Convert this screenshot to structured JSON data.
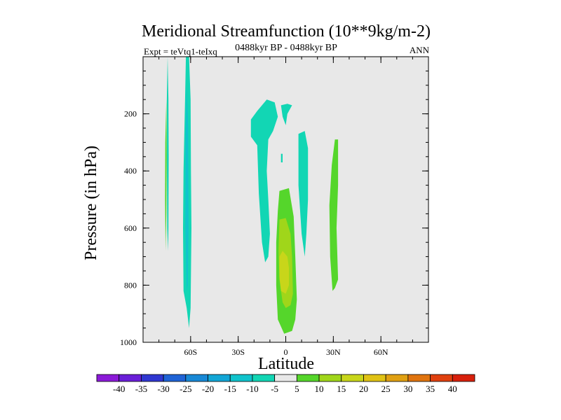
{
  "chart_data": {
    "type": "contour",
    "title": "Meridional Streamfunction (10**9kg/m-2)",
    "subtitle": "0488kyr BP - 0488kyr BP",
    "left_label": "Expt = teVtq1-teIxq",
    "right_label": "ANN",
    "xlabel": "Latitude",
    "ylabel": "Pressure (in hPa)",
    "xlim": [
      -90,
      90
    ],
    "ylim": [
      1000,
      0
    ],
    "x_ticks": [
      -60,
      -30,
      0,
      30,
      60
    ],
    "x_tick_labels": [
      "60S",
      "30S",
      "0",
      "30N",
      "60N"
    ],
    "y_ticks": [
      200,
      400,
      600,
      800,
      1000
    ],
    "y_tick_labels": [
      "200",
      "400",
      "600",
      "800",
      "1000"
    ],
    "colorbar": {
      "levels": [
        -40,
        -35,
        -30,
        -25,
        -20,
        -15,
        -10,
        -5,
        5,
        10,
        15,
        20,
        25,
        30,
        35,
        40
      ],
      "labels": [
        "-40",
        "-35",
        "-30",
        "-25",
        "-20",
        "-15",
        "-10",
        "-5",
        "5",
        "10",
        "15",
        "20",
        "25",
        "30",
        "35",
        "40"
      ],
      "colors": [
        "#8b1ad8",
        "#6a1fd8",
        "#2f37d1",
        "#1f63d6",
        "#1888d6",
        "#12a6d6",
        "#10c3cc",
        "#12d6b4",
        "#e8e8e8",
        "#55d62b",
        "#a0d61a",
        "#c8d61a",
        "#e0c214",
        "#e0a012",
        "#e0740f",
        "#e0400f",
        "#d8200c"
      ]
    },
    "background_color": "#e8e8e8",
    "regions": [
      {
        "name": "neg-5-band-75S",
        "level": -5,
        "color": "#12d6b4",
        "points": [
          [
            -74.5,
            0
          ],
          [
            -74,
            150
          ],
          [
            -73.8,
            350
          ],
          [
            -74,
            600
          ],
          [
            -74.2,
            680
          ],
          [
            -74.8,
            600
          ],
          [
            -75,
            350
          ],
          [
            -75,
            150
          ]
        ]
      },
      {
        "name": "pos-5-band-75S",
        "level": 5,
        "color": "#55d62b",
        "points": [
          [
            -75.3,
            150
          ],
          [
            -75.1,
            350
          ],
          [
            -75.3,
            550
          ],
          [
            -75.8,
            680
          ],
          [
            -76.1,
            500
          ],
          [
            -76,
            300
          ]
        ]
      },
      {
        "name": "neg-5-band-63S",
        "level": -5,
        "color": "#12d6b4",
        "points": [
          [
            -63,
            0
          ],
          [
            -61,
            0
          ],
          [
            -60,
            150
          ],
          [
            -59.8,
            400
          ],
          [
            -59.5,
            600
          ],
          [
            -60,
            880
          ],
          [
            -61,
            950
          ],
          [
            -62.5,
            880
          ],
          [
            -64.5,
            820
          ],
          [
            -64.8,
            600
          ],
          [
            -64.5,
            400
          ],
          [
            -63.5,
            150
          ]
        ]
      },
      {
        "name": "neg-10-core-63S",
        "level": -10,
        "color": "#10c3cc",
        "points": [
          [
            -62.5,
            100
          ],
          [
            -61.5,
            250
          ],
          [
            -61.3,
            600
          ],
          [
            -61.8,
            800
          ],
          [
            -62.5,
            820
          ],
          [
            -63.3,
            600
          ],
          [
            -63.2,
            300
          ]
        ]
      },
      {
        "name": "neg-5-cell-15S",
        "level": -5,
        "color": "#12d6b4",
        "points": [
          [
            -22,
            220
          ],
          [
            -18,
            190
          ],
          [
            -12,
            150
          ],
          [
            -7,
            160
          ],
          [
            -5,
            210
          ],
          [
            -8,
            260
          ],
          [
            -11,
            290
          ],
          [
            -12,
            400
          ],
          [
            -11,
            500
          ],
          [
            -10,
            620
          ],
          [
            -11,
            700
          ],
          [
            -13,
            720
          ],
          [
            -15,
            650
          ],
          [
            -17,
            480
          ],
          [
            -18,
            310
          ],
          [
            -22,
            280
          ]
        ]
      },
      {
        "name": "neg-5-cell-near-eq",
        "level": -5,
        "color": "#12d6b4",
        "points": [
          [
            -3,
            170
          ],
          [
            1,
            165
          ],
          [
            4,
            170
          ],
          [
            1,
            200
          ],
          [
            0,
            240
          ],
          [
            -2,
            210
          ]
        ]
      },
      {
        "name": "neg-5-speck-eq",
        "level": -5,
        "color": "#12d6b4",
        "points": [
          [
            -3,
            340
          ],
          [
            -2,
            340
          ],
          [
            -2,
            370
          ],
          [
            -3,
            370
          ]
        ]
      },
      {
        "name": "neg-5-cell-12N",
        "level": -5,
        "color": "#12d6b4",
        "points": [
          [
            8,
            270
          ],
          [
            12,
            260
          ],
          [
            14,
            320
          ],
          [
            14,
            500
          ],
          [
            13,
            620
          ],
          [
            12,
            700
          ],
          [
            10,
            620
          ],
          [
            8,
            450
          ],
          [
            8,
            330
          ]
        ]
      },
      {
        "name": "pos-5-cell-eq",
        "level": 5,
        "color": "#55d62b",
        "points": [
          [
            -4,
            470
          ],
          [
            2,
            460
          ],
          [
            5,
            560
          ],
          [
            6,
            700
          ],
          [
            7,
            850
          ],
          [
            6,
            920
          ],
          [
            4,
            960
          ],
          [
            -1,
            970
          ],
          [
            -5,
            920
          ],
          [
            -6,
            800
          ],
          [
            -6,
            650
          ],
          [
            -5,
            540
          ]
        ]
      },
      {
        "name": "pos-10-cell-eq",
        "level": 10,
        "color": "#a0d61a",
        "points": [
          [
            -4,
            570
          ],
          [
            0,
            565
          ],
          [
            3,
            620
          ],
          [
            4,
            700
          ],
          [
            4.5,
            830
          ],
          [
            3,
            870
          ],
          [
            0,
            880
          ],
          [
            -2,
            860
          ],
          [
            -4,
            780
          ],
          [
            -4.5,
            680
          ]
        ]
      },
      {
        "name": "pos-15-core-eq",
        "level": 15,
        "color": "#c8d61a",
        "points": [
          [
            -4,
            700
          ],
          [
            -2,
            680
          ],
          [
            1,
            700
          ],
          [
            2,
            740
          ],
          [
            2,
            800
          ],
          [
            0,
            830
          ],
          [
            -3,
            820
          ],
          [
            -4,
            770
          ]
        ]
      },
      {
        "name": "pos-5-band-30N",
        "level": 5,
        "color": "#55d62b",
        "points": [
          [
            31,
            290
          ],
          [
            33,
            290
          ],
          [
            33,
            450
          ],
          [
            32,
            600
          ],
          [
            33,
            780
          ],
          [
            31,
            810
          ],
          [
            29.5,
            820
          ],
          [
            28,
            700
          ],
          [
            27.5,
            520
          ],
          [
            29,
            380
          ]
        ]
      }
    ]
  }
}
